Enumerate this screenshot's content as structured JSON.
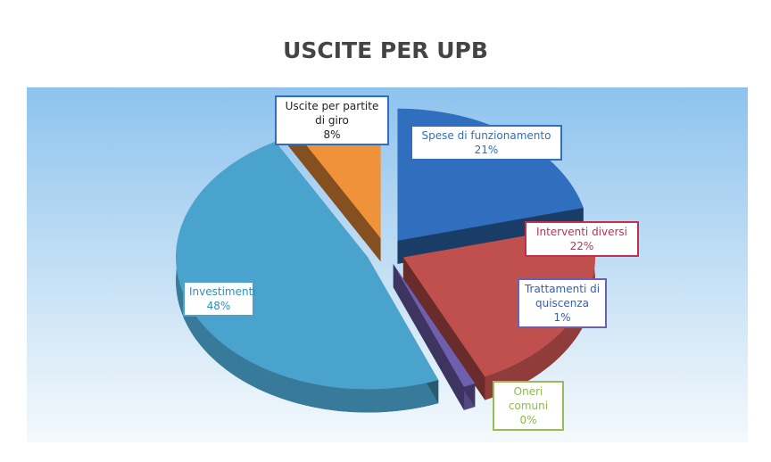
{
  "chart_data": {
    "type": "pie",
    "title": "USCITE PER UPB",
    "categories": [
      "Spese di funzionamento",
      "Interventi diversi",
      "Trattamenti di quiscenza",
      "Oneri comuni",
      "Investimenti",
      "Uscite per partite di giro"
    ],
    "values": [
      21,
      22,
      1,
      0,
      48,
      8
    ],
    "value_labels": [
      "21%",
      "22%",
      "1%",
      "0%",
      "48%",
      "8%"
    ],
    "colors": [
      "#2f6fbd",
      "#c0504d",
      "#6f5fae",
      "#9bbb59",
      "#4aa3cc",
      "#f0923a"
    ]
  }
}
